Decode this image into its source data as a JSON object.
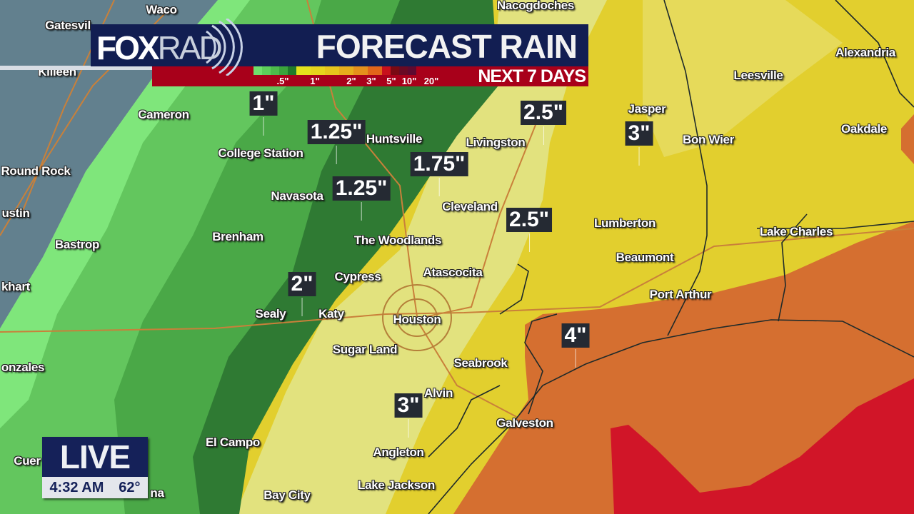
{
  "header": {
    "logo_text": "FOXRAD",
    "logo_fox": "FOX",
    "logo_rad": "RAD",
    "title": "FORECAST RAIN",
    "subtitle": "NEXT 7 DAYS"
  },
  "legend": {
    "colors": [
      "#6fe06c",
      "#5ccf5a",
      "#4cbb4b",
      "#3aa43c",
      "#1f7a2a",
      "#e4e21c",
      "#e6d41c",
      "#e6c41c",
      "#e6ad1c",
      "#e5901c",
      "#e2661a",
      "#c8101c",
      "#7a0a14",
      "#6a0a24",
      "#5e0a30"
    ],
    "labels": [
      ".5\"",
      "1\"",
      "2\"",
      "3\"",
      "5\"",
      "10\"",
      "20\""
    ]
  },
  "map": {
    "colors": {
      "slate": "#62808e",
      "light_green": "#7fe67b",
      "green": "#63c65e",
      "medium_green": "#4aa847",
      "dark_green": "#2f7a33",
      "pale_yellow": "#e2e27e",
      "yellow": "#e2cf2e",
      "orange": "#d56f30",
      "red": "#d11528"
    },
    "cities": [
      "Waco",
      "Gatesvil",
      "Nacogdoches",
      "Alexandria",
      "Killeen",
      "Leesville",
      "Cameron",
      "Jasper",
      "Oakdale",
      "Bon Wier",
      "Huntsville",
      "Livingston",
      "College Station",
      "Round Rock",
      "Navasota",
      "Cleveland",
      "ustin",
      "Brenham",
      "Lumberton",
      "Lake Charles",
      "The Woodlands",
      "Bastrop",
      "Beaumont",
      "Atascocita",
      "Cypress",
      "khart",
      "Port Arthur",
      "Sealy",
      "Katy",
      "Houston",
      "Sugar Land",
      "Seabrook",
      "onzales",
      "Alvin",
      "Galveston",
      "El Campo",
      "Cuer",
      "Angleton",
      "Bay City",
      "Lake Jackson",
      "na"
    ],
    "rain_totals": [
      "1\"",
      "1.25\"",
      "1.75\"",
      "1.25\"",
      "2.5\"",
      "3\"",
      "2.5\"",
      "2\"",
      "4\"",
      "3\""
    ]
  },
  "live_bug": {
    "label": "LIVE",
    "time": "4:32 AM",
    "temperature": "62°"
  }
}
